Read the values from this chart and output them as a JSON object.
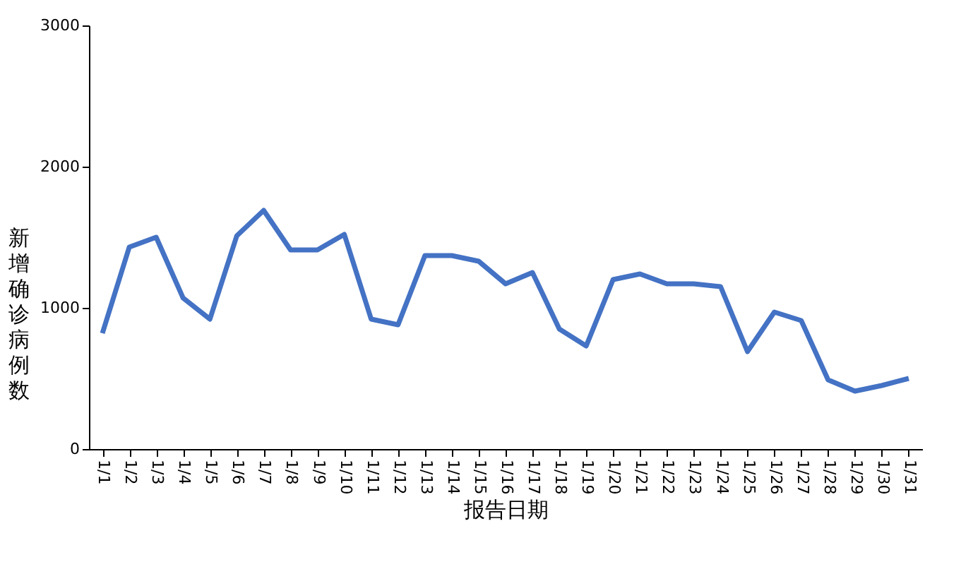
{
  "chart_data": {
    "type": "line",
    "xlabel": "报告日期",
    "ylabel": "新增确诊病例数",
    "categories": [
      "1/1",
      "1/2",
      "1/3",
      "1/4",
      "1/5",
      "1/6",
      "1/7",
      "1/8",
      "1/9",
      "1/10",
      "1/11",
      "1/12",
      "1/13",
      "1/14",
      "1/15",
      "1/16",
      "1/17",
      "1/18",
      "1/19",
      "1/20",
      "1/21",
      "1/22",
      "1/23",
      "1/24",
      "1/25",
      "1/26",
      "1/27",
      "1/28",
      "1/29",
      "1/30",
      "1/31"
    ],
    "series": [
      {
        "color": "#4472c4",
        "values": [
          820,
          1430,
          1500,
          1070,
          920,
          1510,
          1690,
          1410,
          1410,
          1520,
          920,
          880,
          1370,
          1370,
          1330,
          1170,
          1250,
          850,
          730,
          1200,
          1240,
          1170,
          1170,
          1150,
          690,
          970,
          910,
          490,
          410,
          450,
          500
        ]
      }
    ],
    "ylim": [
      0,
      3000
    ],
    "yticks": [
      0,
      1000,
      2000,
      3000
    ],
    "grid": false,
    "legend": false,
    "marker": "none",
    "line_style": "solid"
  }
}
